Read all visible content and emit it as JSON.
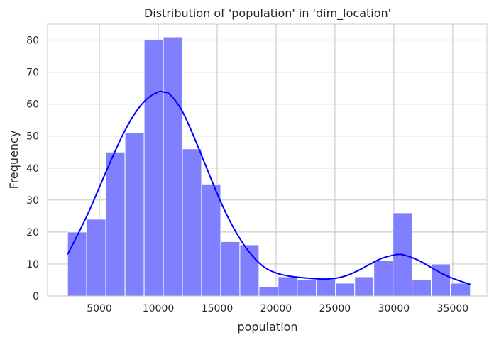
{
  "chart_data": {
    "type": "bar",
    "title": "Distribution of 'population' in 'dim_location'",
    "xlabel": "population",
    "ylabel": "Frequency",
    "xlim": [
      600,
      37900
    ],
    "ylim": [
      0,
      85
    ],
    "xticks": [
      5000,
      10000,
      15000,
      20000,
      25000,
      30000,
      35000
    ],
    "yticks": [
      0,
      10,
      20,
      30,
      40,
      50,
      60,
      70,
      80
    ],
    "grid": true,
    "bin_edges": [
      2300,
      3925,
      5550,
      7175,
      8800,
      10425,
      12050,
      13675,
      15300,
      16925,
      18550,
      20175,
      21800,
      23425,
      25050,
      26675,
      28300,
      29925,
      31550,
      33175,
      34800,
      36500
    ],
    "values": [
      20,
      24,
      45,
      51,
      80,
      81,
      46,
      35,
      17,
      16,
      3,
      6,
      5,
      5,
      4,
      6,
      11,
      26,
      5,
      10,
      4
    ],
    "kde": {
      "name": "kde",
      "x": [
        2300,
        3000,
        4000,
        5000,
        6000,
        7000,
        8000,
        9000,
        10000,
        10500,
        11000,
        12000,
        13000,
        14000,
        15000,
        16000,
        17000,
        18000,
        19000,
        20000,
        21000,
        22000,
        23000,
        24000,
        25000,
        26000,
        27000,
        28000,
        29000,
        30000,
        30500,
        31000,
        32000,
        33000,
        34000,
        35000,
        36500
      ],
      "y": [
        13,
        18,
        25.5,
        34,
        42.5,
        50.5,
        57,
        61.5,
        63.8,
        63.7,
        63,
        58,
        50,
        41,
        32,
        24,
        17.5,
        12.5,
        9,
        7.2,
        6.3,
        5.8,
        5.5,
        5.3,
        5.5,
        6.4,
        8,
        10,
        11.8,
        12.8,
        13,
        12.7,
        11.3,
        9.3,
        7.2,
        5.5,
        3.6
      ]
    },
    "colors": {
      "bar_fill": "#8080ff",
      "bar_edge": "#ffffff",
      "kde_line": "#0000ff",
      "grid": "#cccccc",
      "text": "#262626"
    }
  }
}
